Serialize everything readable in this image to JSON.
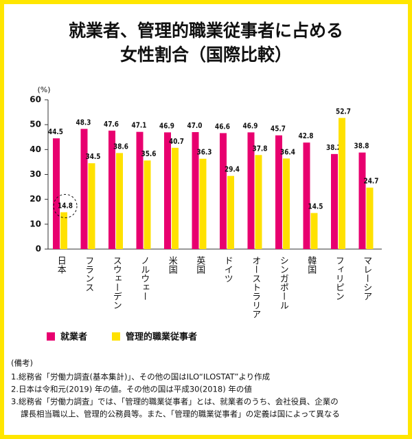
{
  "chart_data": {
    "type": "bar",
    "title": [
      "就業者、管理的職業従事者に占める",
      "女性割合（国際比較）"
    ],
    "y_label": "(%)",
    "categories": [
      "日本",
      "フランス",
      "スウェーデン",
      "ノルウェー",
      "米国",
      "英国",
      "ドイツ",
      "オーストラリア",
      "シンガポール",
      "韓国",
      "フィリピン",
      "マレーシア"
    ],
    "series": [
      {
        "name": "就業者",
        "color": "#e8006f",
        "values": [
          44.5,
          48.3,
          47.6,
          47.1,
          46.9,
          47.0,
          46.6,
          46.9,
          45.7,
          42.8,
          38.2,
          38.8
        ],
        "value_labels": [
          "44.5",
          "48.3",
          "47.6",
          "47.1",
          "46.9",
          "47.0",
          "46.6",
          "46.9",
          "45.7",
          "42.8",
          "38.2",
          "38.8"
        ]
      },
      {
        "name": "管理的職業従事者",
        "color": "#ffe100",
        "values": [
          14.8,
          34.5,
          38.6,
          35.6,
          40.7,
          36.3,
          29.4,
          37.8,
          36.4,
          14.5,
          52.7,
          24.7
        ],
        "value_labels": [
          "14.8",
          "34.5",
          "38.6",
          "35.6",
          "40.7",
          "36.3",
          "29.4",
          "37.8",
          "36.4",
          "14.5",
          "52.7",
          "24.7"
        ]
      }
    ],
    "highlight": [
      1,
      0
    ],
    "ylim": [
      0,
      60
    ],
    "yticks": [
      0,
      10,
      20,
      30,
      40,
      50,
      60
    ],
    "grid": false,
    "notes": [
      "(備考)",
      "1.総務省「労働力調査(基本集計)」、その他の国はILO“ILOSTAT”より作成",
      "2.日本は令和元(2019) 年の値。その他の国は平成30(2018) 年の値",
      "3.総務省「労働力調査」では、「管理的職業従事者」とは、就業者のうち、会社役員、企業の",
      "課長相当職以上、管理的公務員等。また、「管理的職業従事者」の定義は国によって異なる"
    ]
  }
}
